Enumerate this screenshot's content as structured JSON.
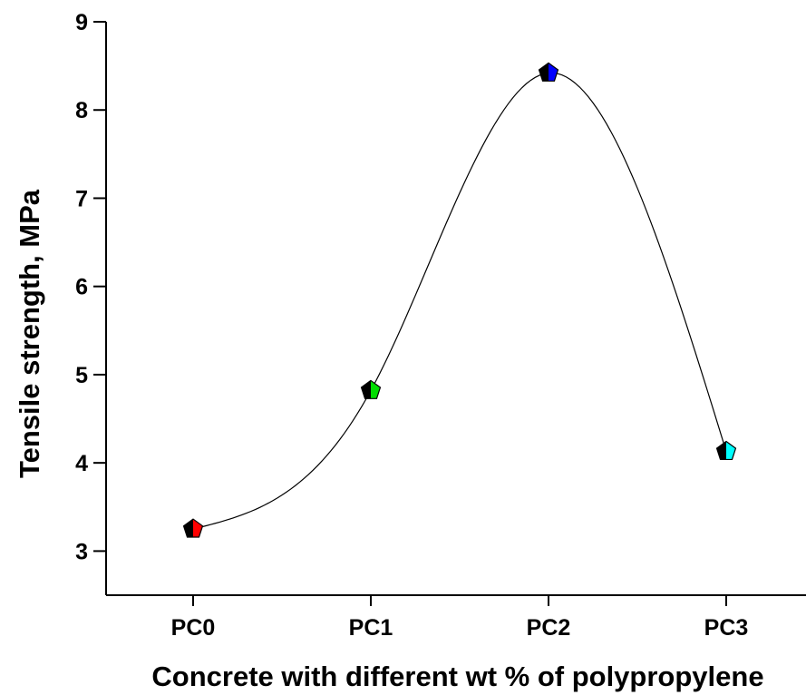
{
  "chart_data": {
    "type": "line",
    "title": "",
    "xlabel": "Concrete with different wt % of polypropylene",
    "ylabel": "Tensile strength, MPa",
    "categories": [
      "PC0",
      "PC1",
      "PC2",
      "PC3"
    ],
    "series": [
      {
        "values": [
          3.25,
          4.82,
          8.42,
          4.13
        ],
        "marker": "pentagon",
        "marker_colors": [
          "#ff0000",
          "#00dd00",
          "#0000ff",
          "#00ffff"
        ],
        "line_color": "#000000",
        "smoothed": true
      }
    ],
    "ylim": [
      2.5,
      9
    ],
    "y_ticks": [
      3,
      4,
      5,
      6,
      7,
      8,
      9
    ],
    "y_tick_labels": [
      "3",
      "4",
      "5",
      "6",
      "7",
      "8",
      "9"
    ],
    "grid": false,
    "legend": "none"
  }
}
